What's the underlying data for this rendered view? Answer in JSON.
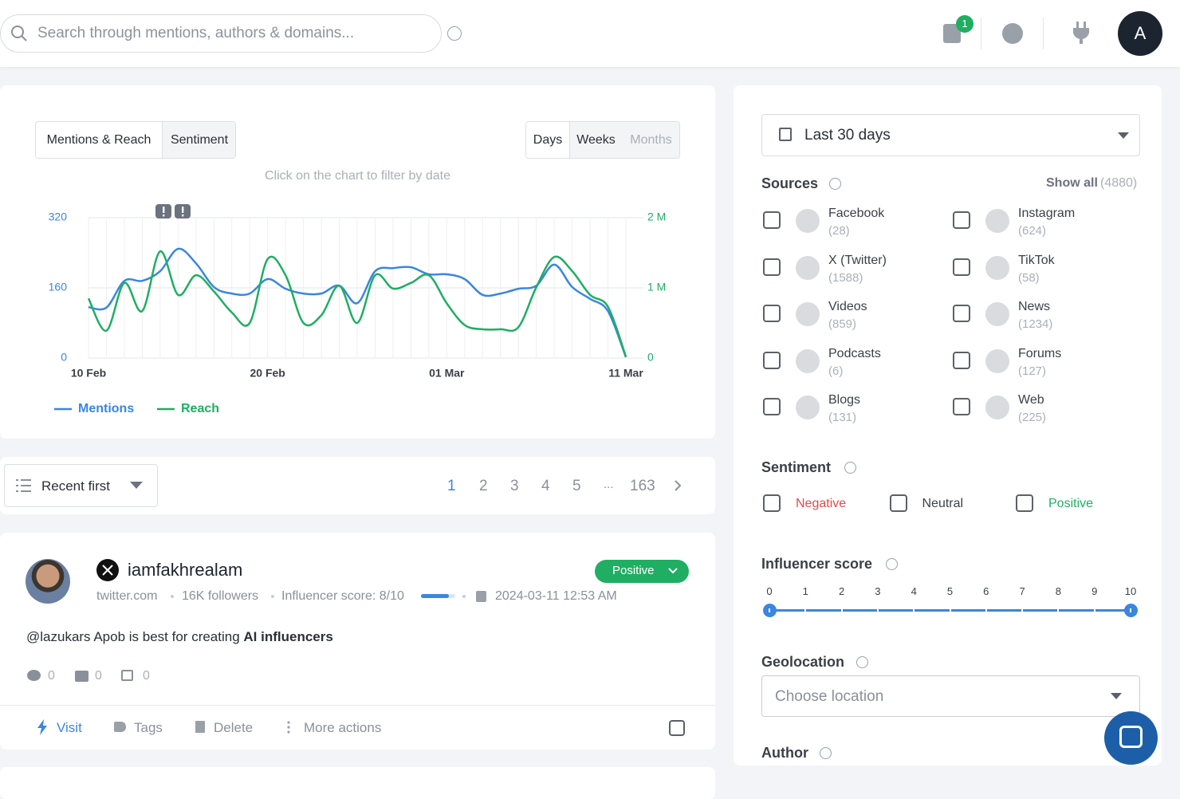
{
  "topbar": {
    "search_placeholder": "Search through mentions, authors & domains...",
    "notification_count": 1,
    "avatar": "A"
  },
  "chart_panel": {
    "tabs": [
      "Mentions & Reach",
      "Sentiment"
    ],
    "periods": [
      "Days",
      "Weeks",
      "Months"
    ],
    "hint": "Click on the chart to filter by date"
  },
  "chart_data": {
    "type": "line",
    "categories": [
      "10 Feb",
      null,
      null,
      null,
      null,
      null,
      null,
      null,
      null,
      null,
      "20 Feb",
      null,
      null,
      null,
      null,
      null,
      null,
      null,
      null,
      null,
      "01 Mar",
      null,
      null,
      null,
      null,
      null,
      null,
      null,
      null,
      null,
      "11 Mar"
    ],
    "series": [
      {
        "name": "Mentions",
        "color": "#3a86e0",
        "values": [
          116,
          115,
          176,
          176,
          198,
          249,
          216,
          162,
          147,
          147,
          180,
          158,
          147,
          147,
          165,
          125,
          198,
          205,
          207,
          191,
          191,
          180,
          144,
          147,
          158,
          165,
          213,
          162,
          135,
          107,
          2
        ]
      },
      {
        "name": "Reach",
        "color": "#1fae62",
        "axis": "y2",
        "values": [
          850000,
          390000,
          1070000,
          670000,
          1520000,
          900000,
          1180000,
          950000,
          650000,
          500000,
          1410000,
          1180000,
          500000,
          610000,
          1030000,
          500000,
          1180000,
          990000,
          1070000,
          1180000,
          780000,
          470000,
          410000,
          410000,
          440000,
          1010000,
          1440000,
          1240000,
          900000,
          730000,
          20000
        ]
      }
    ],
    "ylim": [
      0,
      320
    ],
    "yticks": [
      0,
      160,
      320
    ],
    "y2lim": [
      0,
      2000000
    ],
    "y2ticks": [
      0,
      {
        "value": 1000000,
        "label": "1 M"
      },
      {
        "value": 2000000,
        "label": "2 M"
      }
    ],
    "grid": true
  },
  "sort": {
    "label": "Recent first"
  },
  "pagination": {
    "pages": [
      1,
      2,
      3,
      4,
      5
    ],
    "ellipsis": "...",
    "last": 163
  },
  "mention": {
    "author": "iamfakhrealam",
    "sentiment": "Positive",
    "domain": "twitter.com",
    "followers": "16K followers",
    "influencer_score": "Influencer score: 8/10",
    "date": "2024-03-11 12:53 AM",
    "text": "@lazukars Apob is best for creating",
    "text_bold": "AI influencers",
    "comments": 0,
    "likes": 0,
    "shares": 0,
    "actions": [
      "Visit",
      "Tags",
      "Delete",
      "More actions"
    ]
  },
  "filters": {
    "date_range": "Last 30 days",
    "sources_title": "Sources",
    "show_all": "Show all",
    "show_all_count": "(4880)",
    "sources": [
      {
        "name": "Facebook",
        "count": "(28)"
      },
      {
        "name": "Instagram",
        "count": "(624)"
      },
      {
        "name": "X (Twitter)",
        "count": "(1588)"
      },
      {
        "name": "TikTok",
        "count": "(58)"
      },
      {
        "name": "Videos",
        "count": "(859)"
      },
      {
        "name": "News",
        "count": "(1234)"
      },
      {
        "name": "Podcasts",
        "count": "(6)"
      },
      {
        "name": "Forums",
        "count": "(127)"
      },
      {
        "name": "Blogs",
        "count": "(131)"
      },
      {
        "name": "Web",
        "count": "(225)"
      }
    ],
    "sentiment_title": "Sentiment",
    "sentiments": [
      "Negative",
      "Neutral",
      "Positive"
    ],
    "influencer_title": "Influencer score",
    "influencer_scale": [
      0,
      1,
      2,
      3,
      4,
      5,
      6,
      7,
      8,
      9,
      10
    ],
    "geolocation_title": "Geolocation",
    "geolocation_placeholder": "Choose location",
    "author_title": "Author"
  }
}
